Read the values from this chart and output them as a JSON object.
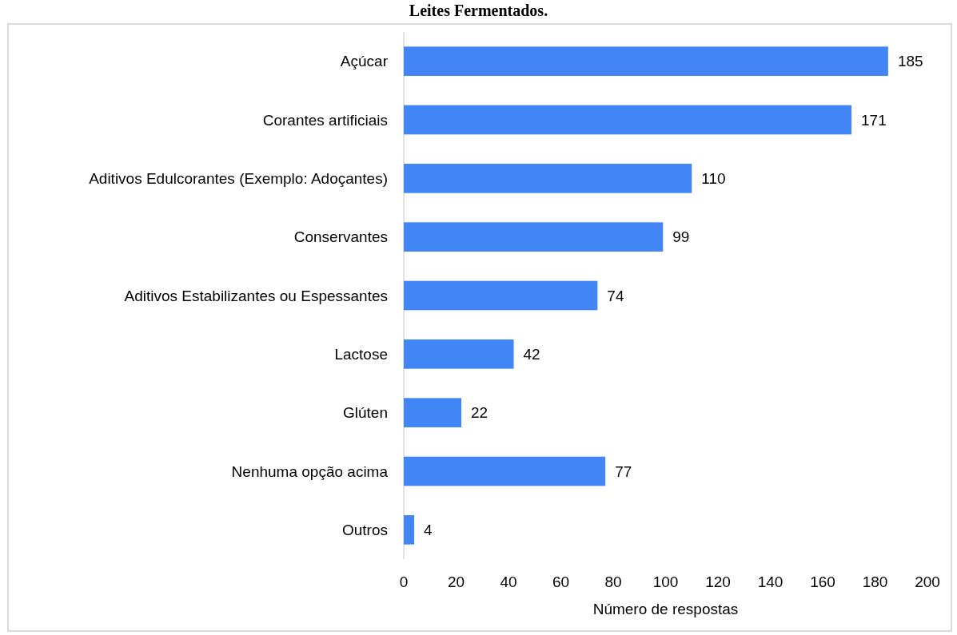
{
  "chart_data": {
    "type": "bar",
    "orientation": "horizontal",
    "title": "Leites Fermentados.",
    "xlabel": "Número de respostas",
    "categories": [
      "Açúcar",
      "Corantes artificiais",
      "Aditivos Edulcorantes (Exemplo: Adoçantes)",
      "Conservantes",
      "Aditivos Estabilizantes ou Espessantes",
      "Lactose",
      "Glúten",
      "Nenhuma opção acima",
      "Outros"
    ],
    "values": [
      185,
      171,
      110,
      99,
      74,
      42,
      22,
      77,
      4
    ],
    "color": "#4285f4",
    "xlim": [
      0,
      200
    ],
    "xticks": [
      0,
      20,
      40,
      60,
      80,
      100,
      120,
      140,
      160,
      180,
      200
    ],
    "data_labels": true
  }
}
